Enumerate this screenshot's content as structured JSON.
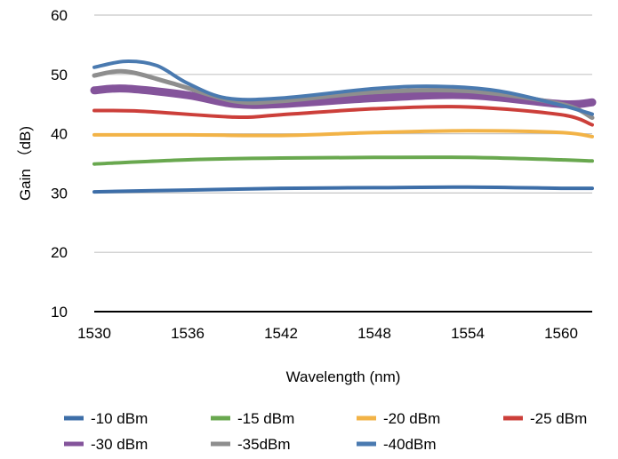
{
  "chart_data": {
    "type": "line",
    "title": "",
    "xlabel": "Wavelength (nm)",
    "ylabel": "Gain （dB)",
    "xlim": [
      1530,
      1562
    ],
    "ylim": [
      10,
      60
    ],
    "x_ticks": [
      1530,
      1536,
      1542,
      1548,
      1554,
      1560
    ],
    "y_ticks": [
      10,
      20,
      30,
      40,
      50,
      60
    ],
    "grid": "horizontal",
    "legend_position": "bottom",
    "series": [
      {
        "name": "-10 dBm",
        "color": "#3d6ea8",
        "stroke": 4,
        "x": [
          1530,
          1536,
          1542,
          1548,
          1554,
          1560,
          1562
        ],
        "y": [
          30.2,
          30.5,
          30.8,
          30.9,
          31.0,
          30.8,
          30.8
        ]
      },
      {
        "name": "-15 dBm",
        "color": "#69a84f",
        "stroke": 4,
        "x": [
          1530,
          1536,
          1542,
          1548,
          1554,
          1560,
          1562
        ],
        "y": [
          34.9,
          35.6,
          35.9,
          36.0,
          36.0,
          35.6,
          35.4
        ]
      },
      {
        "name": "-20 dBm",
        "color": "#f2b347",
        "stroke": 4,
        "x": [
          1530,
          1536,
          1542,
          1548,
          1554,
          1560,
          1562
        ],
        "y": [
          39.8,
          39.8,
          39.7,
          40.2,
          40.5,
          40.2,
          39.5
        ]
      },
      {
        "name": "-25 dBm",
        "color": "#cc3f3a",
        "stroke": 4,
        "x": [
          1530,
          1533,
          1539,
          1542,
          1548,
          1554,
          1560,
          1562
        ],
        "y": [
          43.9,
          43.8,
          42.8,
          43.2,
          44.2,
          44.5,
          43.2,
          41.5
        ]
      },
      {
        "name": "-30 dBm",
        "color": "#84549b",
        "stroke": 9,
        "x": [
          1530,
          1532,
          1536,
          1539,
          1542,
          1548,
          1554,
          1560,
          1562
        ],
        "y": [
          47.3,
          47.6,
          46.5,
          45.0,
          45.0,
          46.0,
          46.5,
          45.0,
          45.3
        ]
      },
      {
        "name": "-35dBm",
        "color": "#8e8e8e",
        "stroke": 5,
        "x": [
          1530,
          1532,
          1535,
          1539,
          1542,
          1548,
          1554,
          1560,
          1562
        ],
        "y": [
          49.8,
          50.5,
          48.5,
          45.5,
          45.5,
          47.0,
          47.2,
          45.0,
          42.7
        ]
      },
      {
        "name": "-40dBm",
        "color": "#4a7ab0",
        "stroke": 4,
        "x": [
          1530,
          1532,
          1534,
          1536,
          1538.5,
          1542,
          1548,
          1552,
          1556,
          1560,
          1562
        ],
        "y": [
          51.2,
          52.2,
          51.5,
          48.5,
          46.0,
          46.0,
          47.6,
          48.0,
          47.2,
          44.8,
          43.3
        ]
      }
    ]
  }
}
